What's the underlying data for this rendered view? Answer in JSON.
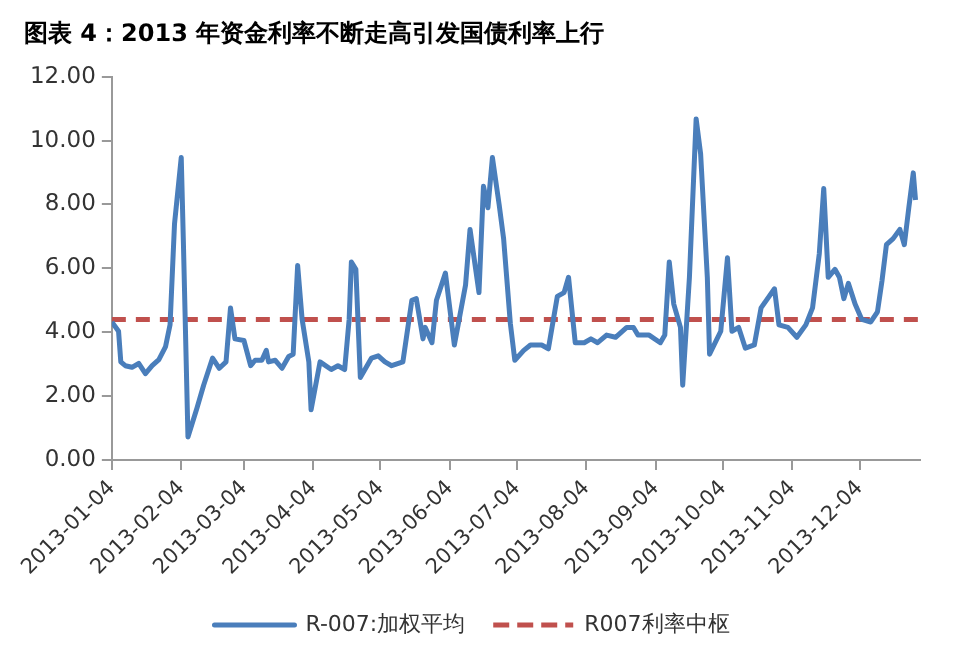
{
  "chart_data": {
    "type": "line",
    "title": "图表 4：2013 年资金利率不断走高引发国债利率上行",
    "x": [
      "2013-01-04",
      "2013-01-07",
      "2013-01-08",
      "2013-01-10",
      "2013-01-13",
      "2013-01-16",
      "2013-01-19",
      "2013-01-22",
      "2013-01-25",
      "2013-01-28",
      "2013-01-30",
      "2013-02-01",
      "2013-02-04",
      "2013-02-05",
      "2013-02-07",
      "2013-02-11",
      "2013-02-14",
      "2013-02-18",
      "2013-02-21",
      "2013-02-24",
      "2013-02-26",
      "2013-02-28",
      "2013-03-04",
      "2013-03-07",
      "2013-03-09",
      "2013-03-12",
      "2013-03-14",
      "2013-03-15",
      "2013-03-18",
      "2013-03-21",
      "2013-03-24",
      "2013-03-26",
      "2013-03-28",
      "2013-03-30",
      "2013-04-02",
      "2013-04-03",
      "2013-04-07",
      "2013-04-12",
      "2013-04-15",
      "2013-04-18",
      "2013-04-20",
      "2013-04-21",
      "2013-04-23",
      "2013-04-25",
      "2013-04-30",
      "2013-05-03",
      "2013-05-06",
      "2013-05-09",
      "2013-05-14",
      "2013-05-18",
      "2013-05-20",
      "2013-05-23",
      "2013-05-24",
      "2013-05-27",
      "2013-05-29",
      "2013-06-02",
      "2013-06-06",
      "2013-06-11",
      "2013-06-13",
      "2013-06-17",
      "2013-06-19",
      "2013-06-21",
      "2013-06-23",
      "2013-06-26",
      "2013-06-28",
      "2013-07-01",
      "2013-07-03",
      "2013-07-07",
      "2013-07-10",
      "2013-07-15",
      "2013-07-18",
      "2013-07-22",
      "2013-07-25",
      "2013-07-27",
      "2013-07-30",
      "2013-08-03",
      "2013-08-06",
      "2013-08-09",
      "2013-08-13",
      "2013-08-17",
      "2013-08-22",
      "2013-08-25",
      "2013-08-27",
      "2013-09-01",
      "2013-09-06",
      "2013-09-08",
      "2013-09-10",
      "2013-09-12",
      "2013-09-15",
      "2013-09-16",
      "2013-09-19",
      "2013-09-22",
      "2013-09-24",
      "2013-09-27",
      "2013-09-28",
      "2013-10-03",
      "2013-10-06",
      "2013-10-08",
      "2013-10-11",
      "2013-10-14",
      "2013-10-18",
      "2013-10-21",
      "2013-10-27",
      "2013-10-29",
      "2013-11-02",
      "2013-11-06",
      "2013-11-10",
      "2013-11-13",
      "2013-11-16",
      "2013-11-18",
      "2013-11-20",
      "2013-11-23",
      "2013-11-25",
      "2013-11-27",
      "2013-11-29",
      "2013-12-02",
      "2013-12-05",
      "2013-12-09",
      "2013-12-12",
      "2013-12-14",
      "2013-12-16",
      "2013-12-19",
      "2013-12-22",
      "2013-12-24",
      "2013-12-26",
      "2013-12-28",
      "2013-12-29"
    ],
    "series": [
      {
        "name": "R-007:加权平均",
        "color": "#4a7ebb",
        "values": [
          4.32,
          4.03,
          3.07,
          2.95,
          2.9,
          3.02,
          2.7,
          2.95,
          3.14,
          3.55,
          4.23,
          7.4,
          9.47,
          6.7,
          0.72,
          1.62,
          2.34,
          3.19,
          2.87,
          3.07,
          4.76,
          3.79,
          3.74,
          2.95,
          3.12,
          3.12,
          3.43,
          3.07,
          3.12,
          2.87,
          3.24,
          3.31,
          6.09,
          4.4,
          3.07,
          1.57,
          3.07,
          2.83,
          2.95,
          2.83,
          4.4,
          6.2,
          5.97,
          2.58,
          3.19,
          3.26,
          3.07,
          2.95,
          3.07,
          5.0,
          5.05,
          3.79,
          4.15,
          3.67,
          5.0,
          5.85,
          3.6,
          5.48,
          7.22,
          5.24,
          8.57,
          7.9,
          9.47,
          8.0,
          6.93,
          4.28,
          3.12,
          3.43,
          3.6,
          3.6,
          3.48,
          5.12,
          5.24,
          5.72,
          3.67,
          3.67,
          3.79,
          3.67,
          3.91,
          3.84,
          4.15,
          4.15,
          3.91,
          3.91,
          3.67,
          3.91,
          6.2,
          4.88,
          4.15,
          2.34,
          5.72,
          10.68,
          9.59,
          5.72,
          3.31,
          4.03,
          6.33,
          4.03,
          4.15,
          3.5,
          3.6,
          4.76,
          5.36,
          4.23,
          4.15,
          3.84,
          4.23,
          4.76,
          6.45,
          8.5,
          5.72,
          5.97,
          5.72,
          5.05,
          5.53,
          4.88,
          4.4,
          4.32,
          4.64,
          5.6,
          6.74,
          6.93,
          7.22,
          6.74,
          7.9,
          8.99,
          8.14
        ]
      }
    ],
    "ref_lines": [
      {
        "axis": "y",
        "value": 4.4,
        "label": "R007利率中枢",
        "color": "#c0504d",
        "line_style": "dashed"
      }
    ],
    "xlim": [
      "2013-01-04",
      "2013-12-31"
    ],
    "xticks": [
      "2013-01-04",
      "2013-02-04",
      "2013-03-04",
      "2013-04-04",
      "2013-05-04",
      "2013-06-04",
      "2013-07-04",
      "2013-08-04",
      "2013-09-04",
      "2013-10-04",
      "2013-11-04",
      "2013-12-04"
    ],
    "ylim": [
      0,
      12
    ],
    "yticks": [
      {
        "value": 0,
        "label": "0.00"
      },
      {
        "value": 2,
        "label": "2.00"
      },
      {
        "value": 4,
        "label": "4.00"
      },
      {
        "value": 6,
        "label": "6.00"
      },
      {
        "value": 8,
        "label": "8.00"
      },
      {
        "value": 10,
        "label": "10.00"
      },
      {
        "value": 12,
        "label": "12.00"
      }
    ],
    "grid": false,
    "legend": "bottom",
    "marker": "none",
    "line_style": "solid"
  }
}
